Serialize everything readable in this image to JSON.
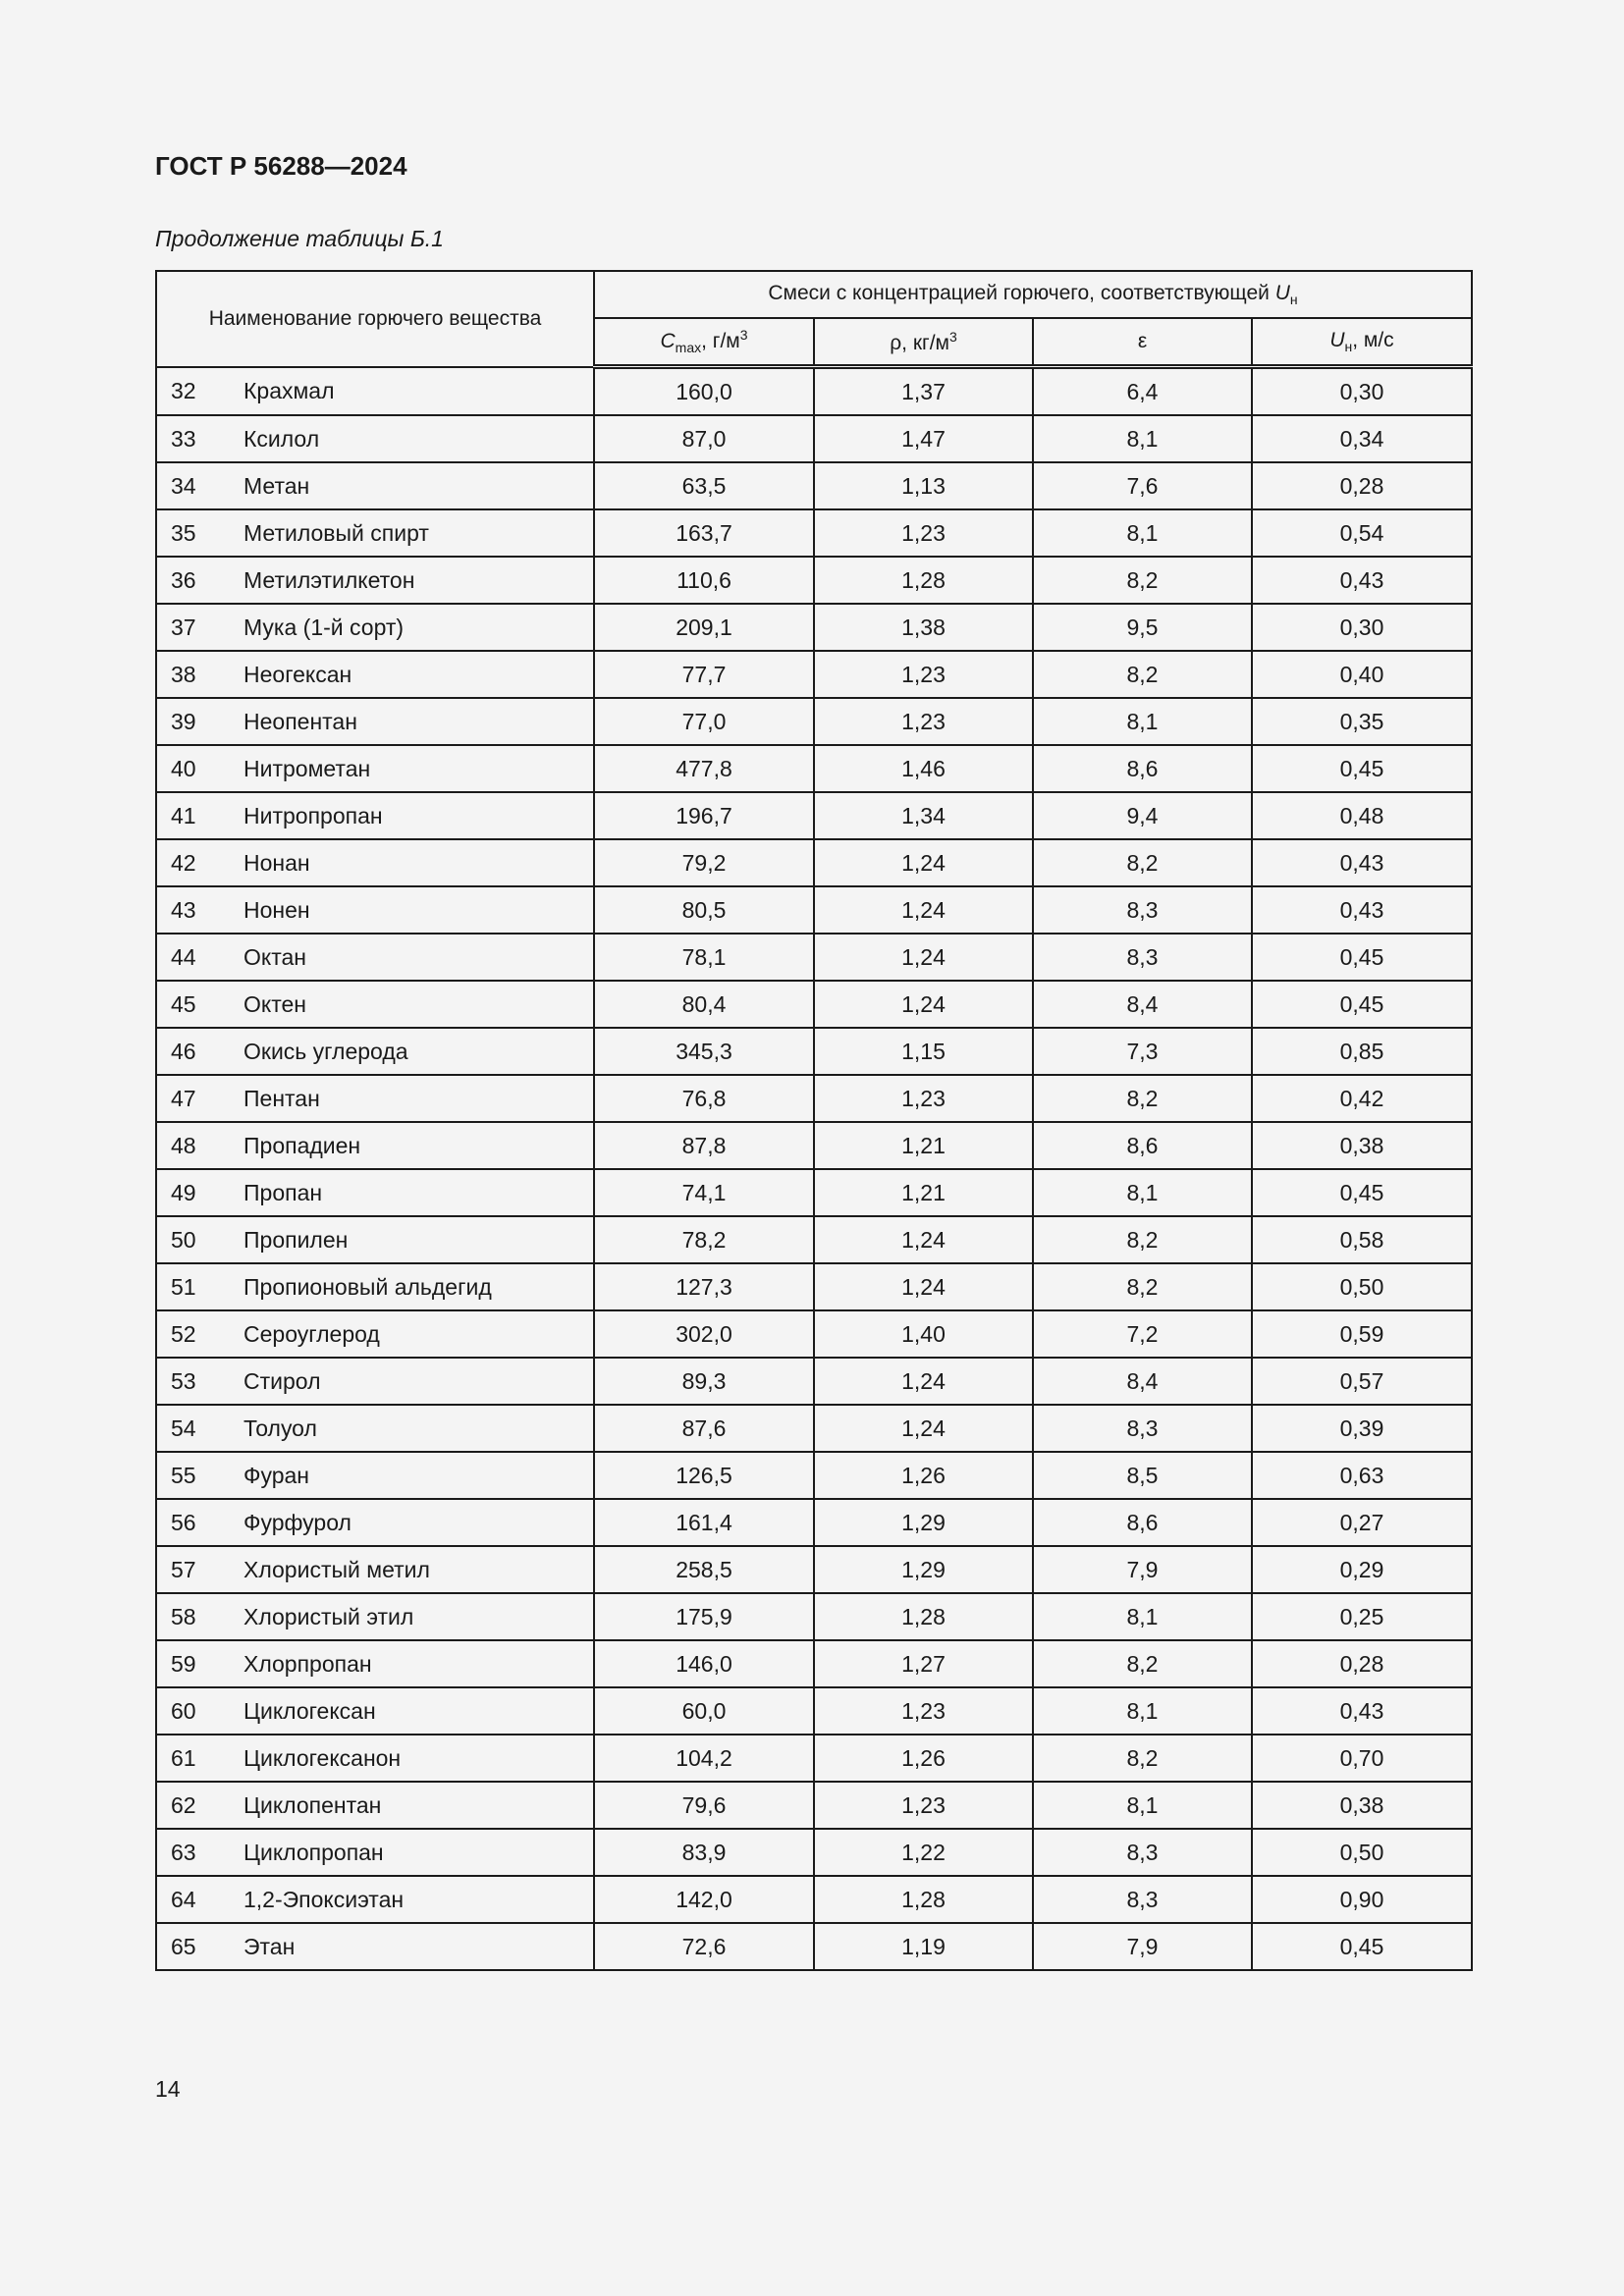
{
  "header": {
    "doc_title": "ГОСТ Р 56288—2024",
    "caption": "Продолжение таблицы Б.1"
  },
  "table": {
    "col_name": "Наименование горючего вещества",
    "group_header": "Смеси с концентрацией горючего, соответствующей",
    "group_header_sym": "U",
    "group_header_sub": "н",
    "col_cmax": {
      "sym": "C",
      "sub": "max",
      "unit": ", г/м",
      "sup": "3"
    },
    "col_rho": {
      "sym": "ρ, кг/м",
      "sup": "3"
    },
    "col_eps": "ε",
    "col_un": {
      "sym": "U",
      "sub": "н",
      "unit": ", м/с"
    },
    "rows": [
      [
        "32",
        "Крахмал",
        "160,0",
        "1,37",
        "6,4",
        "0,30"
      ],
      [
        "33",
        "Ксилол",
        "87,0",
        "1,47",
        "8,1",
        "0,34"
      ],
      [
        "34",
        "Метан",
        "63,5",
        "1,13",
        "7,6",
        "0,28"
      ],
      [
        "35",
        "Метиловый спирт",
        "163,7",
        "1,23",
        "8,1",
        "0,54"
      ],
      [
        "36",
        "Метилэтилкетон",
        "110,6",
        "1,28",
        "8,2",
        "0,43"
      ],
      [
        "37",
        "Мука (1-й сорт)",
        "209,1",
        "1,38",
        "9,5",
        "0,30"
      ],
      [
        "38",
        "Неогексан",
        "77,7",
        "1,23",
        "8,2",
        "0,40"
      ],
      [
        "39",
        "Неопентан",
        "77,0",
        "1,23",
        "8,1",
        "0,35"
      ],
      [
        "40",
        "Нитрометан",
        "477,8",
        "1,46",
        "8,6",
        "0,45"
      ],
      [
        "41",
        "Нитропропан",
        "196,7",
        "1,34",
        "9,4",
        "0,48"
      ],
      [
        "42",
        "Нонан",
        "79,2",
        "1,24",
        "8,2",
        "0,43"
      ],
      [
        "43",
        "Нонен",
        "80,5",
        "1,24",
        "8,3",
        "0,43"
      ],
      [
        "44",
        "Октан",
        "78,1",
        "1,24",
        "8,3",
        "0,45"
      ],
      [
        "45",
        "Октен",
        "80,4",
        "1,24",
        "8,4",
        "0,45"
      ],
      [
        "46",
        "Окись углерода",
        "345,3",
        "1,15",
        "7,3",
        "0,85"
      ],
      [
        "47",
        "Пентан",
        "76,8",
        "1,23",
        "8,2",
        "0,42"
      ],
      [
        "48",
        "Пропадиен",
        "87,8",
        "1,21",
        "8,6",
        "0,38"
      ],
      [
        "49",
        "Пропан",
        "74,1",
        "1,21",
        "8,1",
        "0,45"
      ],
      [
        "50",
        "Пропилен",
        "78,2",
        "1,24",
        "8,2",
        "0,58"
      ],
      [
        "51",
        "Пропионовый альдегид",
        "127,3",
        "1,24",
        "8,2",
        "0,50"
      ],
      [
        "52",
        "Сероуглерод",
        "302,0",
        "1,40",
        "7,2",
        "0,59"
      ],
      [
        "53",
        "Стирол",
        "89,3",
        "1,24",
        "8,4",
        "0,57"
      ],
      [
        "54",
        "Толуол",
        "87,6",
        "1,24",
        "8,3",
        "0,39"
      ],
      [
        "55",
        "Фуран",
        "126,5",
        "1,26",
        "8,5",
        "0,63"
      ],
      [
        "56",
        "Фурфурол",
        "161,4",
        "1,29",
        "8,6",
        "0,27"
      ],
      [
        "57",
        "Хлористый метил",
        "258,5",
        "1,29",
        "7,9",
        "0,29"
      ],
      [
        "58",
        "Хлористый этил",
        "175,9",
        "1,28",
        "8,1",
        "0,25"
      ],
      [
        "59",
        "Хлорпропан",
        "146,0",
        "1,27",
        "8,2",
        "0,28"
      ],
      [
        "60",
        "Циклогексан",
        "60,0",
        "1,23",
        "8,1",
        "0,43"
      ],
      [
        "61",
        "Циклогексанон",
        "104,2",
        "1,26",
        "8,2",
        "0,70"
      ],
      [
        "62",
        "Циклопентан",
        "79,6",
        "1,23",
        "8,1",
        "0,38"
      ],
      [
        "63",
        "Циклопропан",
        "83,9",
        "1,22",
        "8,3",
        "0,50"
      ],
      [
        "64",
        "1,2-Эпоксиэтан",
        "142,0",
        "1,28",
        "8,3",
        "0,90"
      ],
      [
        "65",
        "Этан",
        "72,6",
        "1,19",
        "7,9",
        "0,45"
      ]
    ]
  },
  "footer": {
    "page_number": "14"
  }
}
